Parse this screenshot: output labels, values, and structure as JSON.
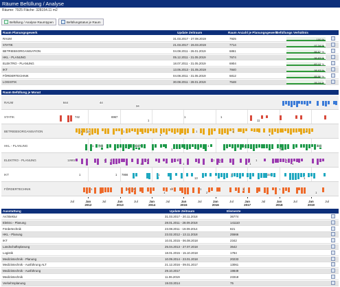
{
  "window": {
    "title": "Räume Befüllung / Analyse",
    "summary": "Räume: 7925 Fläche: 328154.11 m2"
  },
  "toolbar": {
    "btn1_label": "Befüllung / Analyse Raumtypen",
    "btn2_label": "Befüllungstatus je Raum"
  },
  "table1": {
    "headers": [
      "Raum Planungsgewerk",
      "Update Zeitraum",
      "Raum Anzahl je Planungsgewerk",
      "Befüllungs Verhältnis"
    ],
    "rows": [
      {
        "name": "RAUM",
        "period": "31.03.2017 - 27.08.2019",
        "count": "7925",
        "pct_label": "100 %",
        "pct": 100
      },
      {
        "name": "STATIK",
        "period": "21.03.2017 - 26.03.2019",
        "count": "7714",
        "pct_label": "97.34 %",
        "pct": 97.34
      },
      {
        "name": "BETRIEBSORGANISATION",
        "period": "04.08.2011 - 26.01.2019",
        "count": "6861",
        "pct_label": "86.57 %",
        "pct": 86.57
      },
      {
        "name": "HKL - PLANUNG",
        "period": "05.12.2011 - 31.05.2019",
        "count": "7674",
        "pct_label": "96.83 %",
        "pct": 96.83
      },
      {
        "name": "ELEKTRO - PLANUNG",
        "period": "18.07.2011 - 31.05.2019",
        "count": "6904",
        "pct_label": "87.12 %",
        "pct": 87.12
      },
      {
        "name": "IKT",
        "period": "13.06.2013 - 31.05.2019",
        "count": "7840",
        "pct_label": "98.93 %",
        "pct": 98.93
      },
      {
        "name": "FÖRDERTECHNIK",
        "period": "04.08.2011 - 31.05.2019",
        "count": "6812",
        "pct_label": "85.96 %",
        "pct": 85.96
      },
      {
        "name": "LOGISTIK",
        "period": "30.08.2011 - 28.01.2019",
        "count": "7548",
        "pct_label": "95.24 %",
        "pct": 95.24
      }
    ]
  },
  "gantt": {
    "header": "Raum Befüllung je Monat",
    "rows": [
      {
        "label": "RAUM",
        "color": "#3b7bd8",
        "annotations": [
          "844",
          "44",
          "34"
        ]
      },
      {
        "label": "STATIK",
        "color": "#d84a3b",
        "annotations": [
          "742",
          "6967",
          "1",
          "1",
          "1",
          "11"
        ]
      },
      {
        "label": "BETRIEBSORGANISATION",
        "color": "#e8a81a",
        "annotations": [
          "12",
          "1",
          "1",
          "1",
          "1",
          "1",
          "1",
          "1"
        ]
      },
      {
        "label": "HKL - PLANUNG",
        "color": "#1e9a4a",
        "annotations": [
          "745",
          "4227",
          "1",
          "1",
          "1",
          "5",
          "344",
          "1"
        ]
      },
      {
        "label": "ELEKTRO - PLANUNG",
        "color": "#9b3bb0",
        "annotations": [
          "1",
          "1",
          "1",
          "1",
          "1",
          "1",
          "12602",
          "1",
          "1",
          "1",
          "1",
          "1",
          "1"
        ]
      },
      {
        "label": "IKT",
        "color": "#1fa8c0",
        "annotations": [
          "7866",
          "1",
          "13",
          "1",
          "33",
          "1",
          "1",
          "1"
        ]
      },
      {
        "label": "FÖRDERTECHNIK",
        "color": "#ee6a2a",
        "annotations": [
          "2",
          "13",
          "2",
          "1",
          "1",
          "1",
          "1",
          "1",
          "1",
          "1"
        ]
      }
    ],
    "axis_major": [
      {
        "line1": "Jan",
        "line2": "2012"
      },
      {
        "line1": "Jan",
        "line2": "2013"
      },
      {
        "line1": "Jan",
        "line2": "2014"
      },
      {
        "line1": "Jan",
        "line2": "2015"
      },
      {
        "line1": "Jan",
        "line2": "2016"
      },
      {
        "line1": "Jan",
        "line2": "2017"
      },
      {
        "line1": "Jan",
        "line2": "2018"
      },
      {
        "line1": "Jan",
        "line2": "2019"
      }
    ],
    "axis_minor": "Jul"
  },
  "table2": {
    "headers": [
      "Ausstattung",
      "Update Zeitraum",
      "Elemente"
    ],
    "rows": [
      {
        "name": "Architektur",
        "period": "31.03.2017 - 20.11.2018",
        "count": "36774"
      },
      {
        "name": "Elektro - Planung",
        "period": "28.01.2011 - 28.09.2018",
        "count": "141110"
      },
      {
        "name": "Fördertechnik",
        "period": "23.08.2011 - 19.09.2014",
        "count": "821"
      },
      {
        "name": "HKL - Planung",
        "period": "23.02.2012 - 13.11.2018",
        "count": "25566"
      },
      {
        "name": "IKT",
        "period": "10.01.2015 - 06.08.2018",
        "count": "2342"
      },
      {
        "name": "Landschaftsplanung",
        "period": "25.04.2013 - 27.07.2018",
        "count": "3642"
      },
      {
        "name": "Logistik",
        "period": "18.01.2015 - 15.10.2018",
        "count": "1784"
      },
      {
        "name": "Medizintechnik - Planung",
        "period": "10.09.2014 - 23.01.2018",
        "count": "20233"
      },
      {
        "name": "Medizintechnik - Ausführung ALT",
        "period": "21.12.2016 - 09.01.2017",
        "count": "13061"
      },
      {
        "name": "Medizintechnik - Ausführung",
        "period": "29.10.2017",
        "count": "19849"
      },
      {
        "name": "Medizintechnik",
        "period": "11.06.2019",
        "count": "23318"
      },
      {
        "name": "Verkehrsplanung",
        "period": "19.03.2014",
        "count": "75"
      }
    ]
  }
}
